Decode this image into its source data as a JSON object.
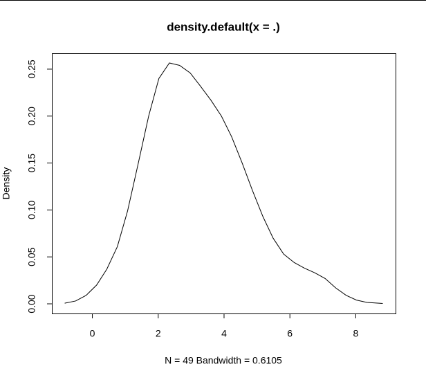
{
  "chart_data": {
    "type": "line",
    "title": "density.default(x = .)",
    "xlabel": "N = 49   Bandwidth = 0.6105",
    "ylabel": "Density",
    "x": [
      -0.84,
      -0.51,
      -0.19,
      0.13,
      0.44,
      0.76,
      1.07,
      1.39,
      1.71,
      2.02,
      2.34,
      2.65,
      2.97,
      3.28,
      3.6,
      3.92,
      4.23,
      4.55,
      4.86,
      5.18,
      5.49,
      5.81,
      6.13,
      6.44,
      6.76,
      7.07,
      7.39,
      7.71,
      8.02,
      8.34,
      8.82
    ],
    "values": [
      0.0007,
      0.003,
      0.009,
      0.02,
      0.037,
      0.061,
      0.099,
      0.149,
      0.2,
      0.24,
      0.2566,
      0.254,
      0.246,
      0.232,
      0.217,
      0.2,
      0.178,
      0.15,
      0.121,
      0.093,
      0.07,
      0.053,
      0.044,
      0.038,
      0.033,
      0.027,
      0.017,
      0.009,
      0.004,
      0.0015,
      0.0004
    ],
    "color": "#000000",
    "xlim": [
      -1.23,
      9.21
    ],
    "ylim": [
      -0.0103,
      0.2669
    ],
    "xticks": [
      0,
      2,
      4,
      6,
      8
    ],
    "yticks": [
      {
        "value": 0,
        "label": "0.00"
      },
      {
        "value": 0.05,
        "label": "0.05"
      },
      {
        "value": 0.1,
        "label": "0.10"
      },
      {
        "value": 0.15,
        "label": "0.15"
      },
      {
        "value": 0.2,
        "label": "0.20"
      },
      {
        "value": 0.25,
        "label": "0.25"
      }
    ]
  }
}
